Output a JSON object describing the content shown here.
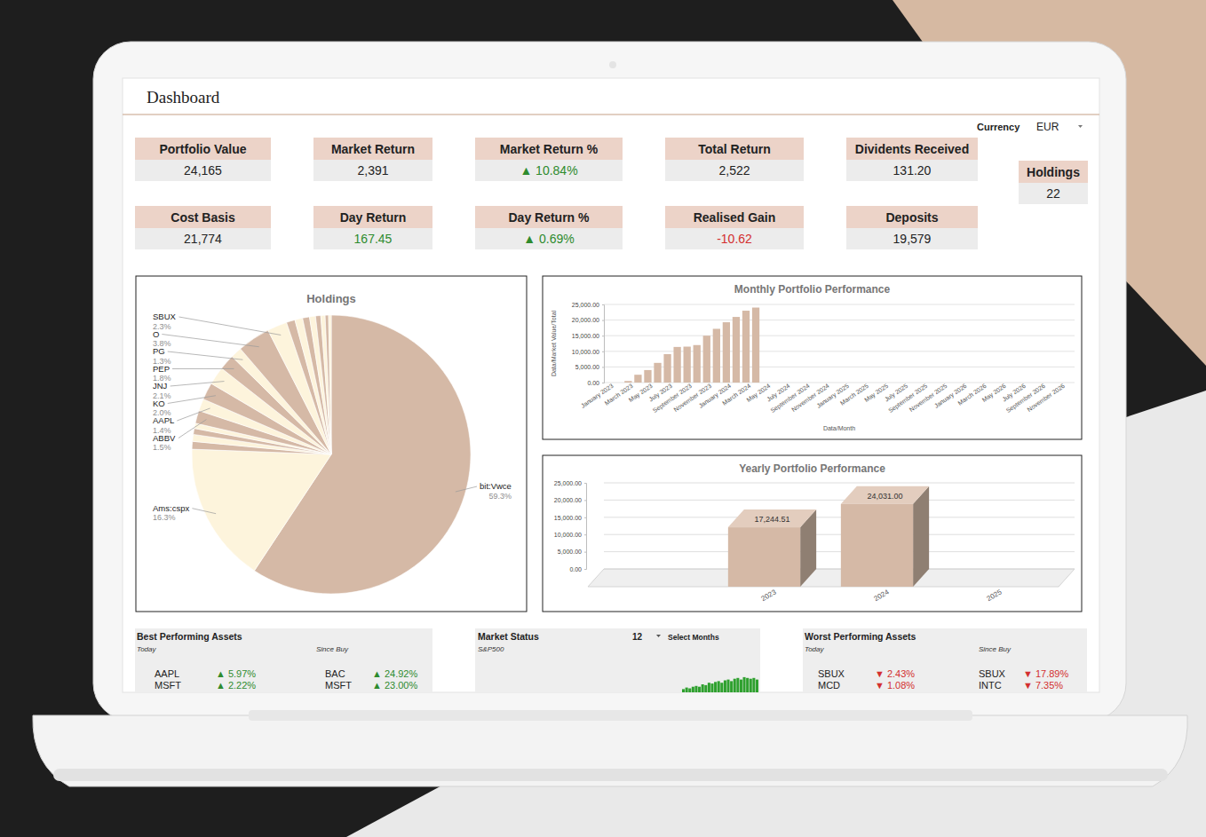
{
  "header": {
    "title": "Dashboard",
    "currency_label": "Currency",
    "currency": "EUR"
  },
  "kpis": [
    {
      "label": "Portfolio Value",
      "value": "24,165"
    },
    {
      "label": "Market Return",
      "value": "2,391"
    },
    {
      "label": "Market Return %",
      "value": "▲ 10.84%",
      "color": "#2e8b2e"
    },
    {
      "label": "Total Return",
      "value": "2,522"
    },
    {
      "label": "Dividents Received",
      "value": "131.20"
    },
    {
      "label": "Holdings",
      "value": "22"
    },
    {
      "label": "Cost Basis",
      "value": "21,774"
    },
    {
      "label": "Day Return",
      "value": "167.45",
      "color": "#2e8b2e"
    },
    {
      "label": "Day Return %",
      "value": "▲ 0.69%",
      "color": "#2e8b2e"
    },
    {
      "label": "Realised Gain",
      "value": "-10.62",
      "color": "#d32f2f"
    },
    {
      "label": "Deposits",
      "value": "19,579"
    }
  ],
  "chart_data": [
    {
      "type": "pie",
      "title": "Holdings",
      "categories": [
        "bit:Vwce",
        "Ams:cspx",
        null,
        null,
        null,
        null,
        "ABBV",
        "AAPL",
        "KO",
        "JNJ",
        "PEP",
        "PG",
        "O",
        "SBUX",
        null,
        null,
        null,
        null,
        null,
        null,
        null,
        null
      ],
      "values": [
        59.3,
        16.3,
        0.9,
        0.8,
        0.7,
        0.6,
        1.5,
        1.4,
        2.0,
        2.1,
        1.8,
        1.3,
        3.8,
        2.3,
        1.0,
        0.9,
        0.8,
        0.7,
        0.6,
        0.5,
        0.4,
        0.3
      ],
      "value_labels": [
        "59.3%",
        "16.3%",
        null,
        null,
        null,
        null,
        "1.5%",
        "1.4%",
        "2.0%",
        "2.1%",
        "1.8%",
        "1.3%",
        "3.8%",
        "2.3%",
        null,
        null,
        null,
        null,
        null,
        null,
        null,
        null
      ],
      "colors": [
        "#d5b9a6",
        "#fdf4dc",
        "#d5b9a6",
        "#fdf4dc",
        "#d5b9a6",
        "#fdf4dc",
        "#d5b9a6",
        "#fdf4dc",
        "#d5b9a6",
        "#fdf4dc",
        "#d5b9a6",
        "#fdf4dc",
        "#d5b9a6",
        "#fdf4dc",
        "#d5b9a6",
        "#fdf4dc",
        "#d5b9a6",
        "#fdf4dc",
        "#d5b9a6",
        "#fdf4dc",
        "#d5b9a6",
        "#fdf4dc"
      ],
      "data_labels": true
    },
    {
      "type": "bar",
      "title": "Monthly Portfolio Performance",
      "x_label": "Data/Month",
      "y_label": "Data/Market Value/Total",
      "categories": [
        "January 2023",
        null,
        "March 2023",
        null,
        "May 2023",
        null,
        "July 2023",
        null,
        "September 2023",
        null,
        "November 2023",
        null,
        "January 2024",
        null,
        "March 2024",
        null,
        "May 2024",
        null,
        "July 2024",
        null,
        "September 2024",
        null,
        "November 2024",
        null,
        "January 2025",
        null,
        "March 2025",
        null,
        "May 2025",
        null,
        "July 2025",
        null,
        "September 2025",
        null,
        "November 2025",
        null,
        "January 2026",
        null,
        "March 2026",
        null,
        "May 2026",
        null,
        "July 2026",
        null,
        "September 2026",
        null,
        "November 2026",
        null
      ],
      "values": [
        null,
        null,
        500,
        2500,
        4000,
        6300,
        9100,
        11400,
        11500,
        12000,
        15000,
        17200,
        19300,
        21000,
        23000,
        24000,
        null,
        null,
        null,
        null,
        null,
        null,
        null,
        null,
        null,
        null,
        null,
        null,
        null,
        null,
        null,
        null,
        null,
        null,
        null,
        null,
        null,
        null,
        null,
        null,
        null,
        null,
        null,
        null,
        null,
        null,
        null,
        null
      ],
      "color": "#d5b9a6",
      "ylim": [
        0,
        25000
      ],
      "yticks": [
        {
          "value": 0,
          "label": "0.00"
        },
        {
          "value": 5000,
          "label": "5,000.00"
        },
        {
          "value": 10000,
          "label": "10,000.00"
        },
        {
          "value": 15000,
          "label": "15,000.00"
        },
        {
          "value": 20000,
          "label": "20,000.00"
        },
        {
          "value": 25000,
          "label": "25,000.00"
        }
      ],
      "grid": true
    },
    {
      "type": "bar3d",
      "title": "Yearly Portfolio Performance",
      "categories": [
        "2023",
        "2024",
        "2025"
      ],
      "values": [
        17244.51,
        24031.0,
        null
      ],
      "value_labels": [
        "17,244.51",
        "24,031.00",
        null
      ],
      "data_labels": true,
      "color": "#d5b9a6",
      "ylim": [
        0,
        25000
      ],
      "yticks": [
        {
          "value": 0,
          "label": "0.00"
        },
        {
          "value": 5000,
          "label": "5,000.00"
        },
        {
          "value": 10000,
          "label": "10,000.00"
        },
        {
          "value": 15000,
          "label": "15,000.00"
        },
        {
          "value": 20000,
          "label": "20,000.00"
        },
        {
          "value": 25000,
          "label": "25,000.00"
        }
      ],
      "grid": true
    }
  ],
  "best_performing": {
    "title": "Best Performing Assets",
    "today_label": "Today",
    "since_label": "Since Buy",
    "color": "#2e8b2e",
    "today": [
      {
        "name": "AAPL",
        "value": "▲ 5.97%"
      },
      {
        "name": "MSFT",
        "value": "▲ 2.22%"
      }
    ],
    "since_buy": [
      {
        "name": "BAC",
        "value": "▲ 24.92%"
      },
      {
        "name": "MSFT",
        "value": "▲ 23.00%"
      }
    ]
  },
  "market_status": {
    "title": "Market Status",
    "subtitle": "S&P500",
    "months": 12,
    "select_label": "Select Months",
    "chart": {
      "type": "bar",
      "color": "#2ea02e",
      "ylim": [
        0,
        10
      ],
      "values": [
        2,
        3,
        2.5,
        3.5,
        4,
        3.5,
        5,
        4.5,
        6,
        5.5,
        6.5,
        7,
        6,
        7.5,
        8,
        7,
        8.5,
        9,
        8,
        9.5,
        9,
        8.5,
        9,
        8
      ]
    }
  },
  "worst_performing": {
    "title": "Worst Performing Assets",
    "today_label": "Today",
    "since_label": "Since Buy",
    "color": "#d32f2f",
    "today": [
      {
        "name": "SBUX",
        "value": "▼ 2.43%"
      },
      {
        "name": "MCD",
        "value": "▼ 1.08%"
      }
    ],
    "since_buy": [
      {
        "name": "SBUX",
        "value": "▼ 17.89%"
      },
      {
        "name": "INTC",
        "value": "▼ 7.35%"
      }
    ]
  }
}
